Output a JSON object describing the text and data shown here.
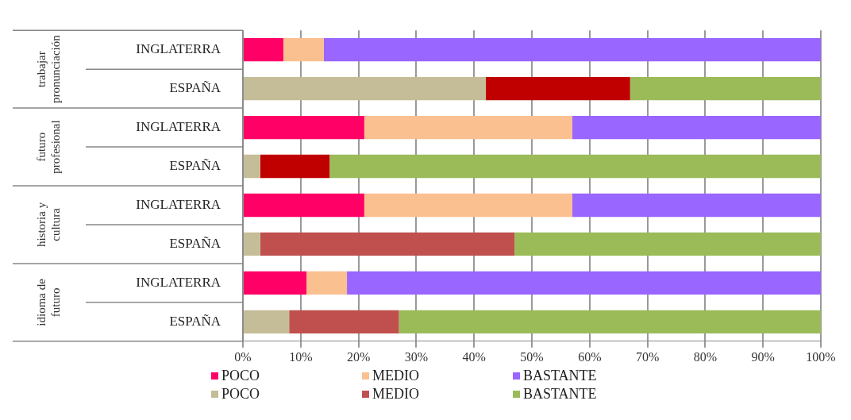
{
  "chart_data": {
    "type": "bar",
    "orientation": "horizontal",
    "stacked": true,
    "categories": [
      "INGLATERRA",
      "ESPAÑA",
      "INGLATERRA",
      "ESPAÑA",
      "INGLATERRA",
      "ESPAÑA",
      "INGLATERRA",
      "ESPAÑA"
    ],
    "annotations": [
      "trabajar pronunciación",
      "futuro profesional",
      "historia y cultura",
      "idioma de futuro"
    ],
    "series": [
      {
        "name": "POCO",
        "color": "#ff0066",
        "values": [
          7,
          null,
          21,
          null,
          21,
          null,
          11,
          null
        ]
      },
      {
        "name": "MEDIO",
        "color": "#fac090",
        "values": [
          7,
          null,
          36,
          null,
          36,
          null,
          7,
          null
        ]
      },
      {
        "name": "BASTANTE",
        "color": "#9966ff",
        "values": [
          86,
          null,
          43,
          null,
          43,
          null,
          82,
          null
        ]
      },
      {
        "name": "POCO",
        "color": "#c4bd97",
        "values": [
          null,
          42,
          null,
          3,
          null,
          3,
          null,
          8
        ]
      },
      {
        "name": "MEDIO",
        "color": "#c0504d",
        "colors": [
          null,
          "#c00000",
          null,
          "#c00000",
          null,
          "#c0504d",
          null,
          "#c0504d"
        ],
        "values": [
          null,
          25,
          null,
          12,
          null,
          44,
          null,
          19
        ]
      },
      {
        "name": "BASTANTE",
        "color": "#9bbb59",
        "values": [
          null,
          33,
          null,
          85,
          null,
          53,
          null,
          73
        ]
      }
    ],
    "xlim": [
      0,
      100
    ],
    "xticks": [
      {
        "value": 0,
        "label": "0%"
      },
      {
        "value": 10,
        "label": "10%"
      },
      {
        "value": 20,
        "label": "20%"
      },
      {
        "value": 30,
        "label": "30%"
      },
      {
        "value": 40,
        "label": "40%"
      },
      {
        "value": 50,
        "label": "50%"
      },
      {
        "value": 60,
        "label": "60%"
      },
      {
        "value": 70,
        "label": "70%"
      },
      {
        "value": 80,
        "label": "80%"
      },
      {
        "value": 90,
        "label": "90%"
      },
      {
        "value": 100,
        "label": "100%"
      }
    ],
    "grid": "x",
    "legend": "bottom"
  }
}
